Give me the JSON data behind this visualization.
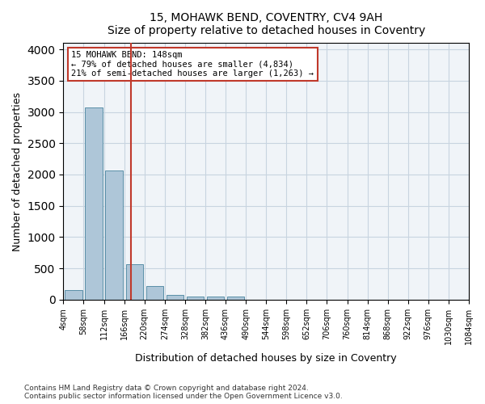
{
  "title": "15, MOHAWK BEND, COVENTRY, CV4 9AH",
  "subtitle": "Size of property relative to detached houses in Coventry",
  "xlabel": "Distribution of detached houses by size in Coventry",
  "ylabel": "Number of detached properties",
  "bar_values": [
    150,
    3070,
    2060,
    565,
    215,
    80,
    50,
    50,
    50,
    0,
    0,
    0,
    0,
    0,
    0,
    0,
    0,
    0,
    0,
    0
  ],
  "bin_labels": [
    "4sqm",
    "58sqm",
    "112sqm",
    "166sqm",
    "220sqm",
    "274sqm",
    "328sqm",
    "382sqm",
    "436sqm",
    "490sqm",
    "544sqm",
    "598sqm",
    "652sqm",
    "706sqm",
    "760sqm",
    "814sqm",
    "868sqm",
    "922sqm",
    "976sqm",
    "1030sqm",
    "1084sqm"
  ],
  "bar_color": "#aec6d8",
  "bar_edge_color": "#5a8fa8",
  "vline_x": 2.82,
  "vline_color": "#c0392b",
  "annotation_text_line1": "15 MOHAWK BEND: 148sqm",
  "annotation_text_line2": "← 79% of detached houses are smaller (4,834)",
  "annotation_text_line3": "21% of semi-detached houses are larger (1,263) →",
  "ylim": [
    0,
    4100
  ],
  "yticks": [
    0,
    500,
    1000,
    1500,
    2000,
    2500,
    3000,
    3500,
    4000
  ],
  "footer1": "Contains HM Land Registry data © Crown copyright and database right 2024.",
  "footer2": "Contains public sector information licensed under the Open Government Licence v3.0.",
  "bg_color": "#f0f4f8",
  "grid_color": "#c8d4e0"
}
